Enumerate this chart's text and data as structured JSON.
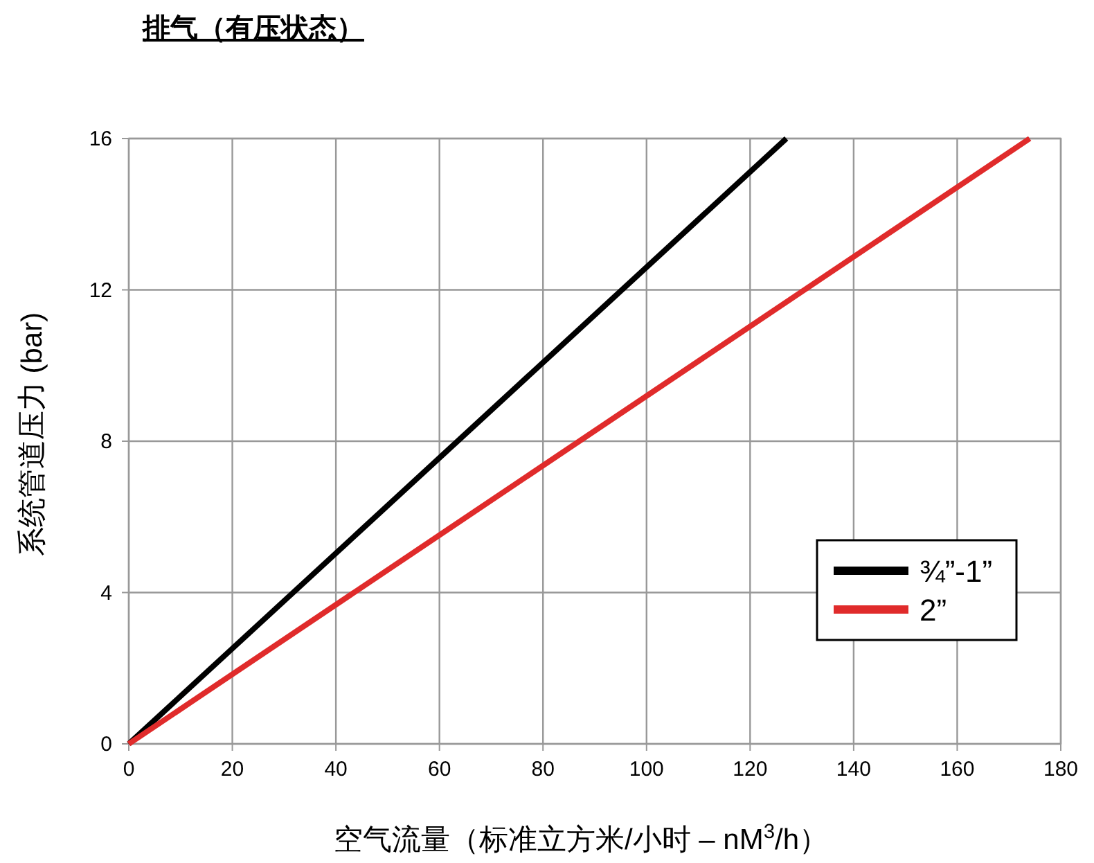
{
  "chart_data": {
    "type": "line",
    "title": "排气（有压状态）",
    "xlabel": "空气流量（标准立方米/小时 – nM$^{3}$/h）",
    "ylabel": "系统管道压力 (bar)",
    "series": [
      {
        "name": "¾”-1”",
        "color": "#000000",
        "values": [
          0,
          16
        ],
        "x": [
          0,
          127
        ]
      },
      {
        "name": "2”",
        "color": "#e02b2b",
        "values": [
          0,
          16
        ],
        "x": [
          0,
          174
        ]
      }
    ],
    "xlim": [
      0,
      180
    ],
    "xticks": [
      0,
      20,
      40,
      60,
      80,
      100,
      120,
      140,
      160,
      180
    ],
    "ylim": [
      0,
      16
    ],
    "yticks": [
      0,
      4,
      8,
      12,
      16
    ],
    "grid": true,
    "legend": "right",
    "marker": "none",
    "line_style": "solid"
  }
}
